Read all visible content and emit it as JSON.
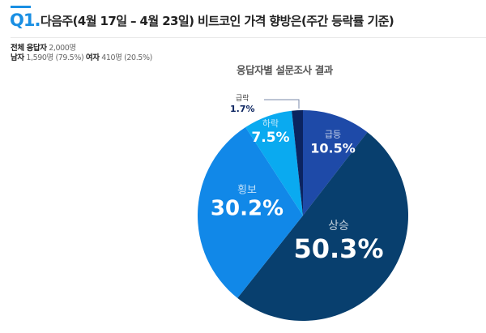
{
  "header": {
    "question_number": "Q1.",
    "title": "다음주(4월 17일 – 4월 23일)  비트코인 가격 향방은(주간 등락률 기준)"
  },
  "stats": {
    "total_label": "전체 응답자",
    "total_value": "2,000명",
    "male_label": "남자",
    "male_value": "1,590명 (79.5%)",
    "female_label": "여자",
    "female_value": "410명 (20.5%)"
  },
  "colors": {
    "accent": "#1a8fe3",
    "상승": "#083f6e",
    "횡보": "#1188e8",
    "하락": "#0aaaf0",
    "급락": "#0b2460",
    "급등": "#1e4aa8"
  },
  "chart_data": {
    "type": "pie",
    "title": "응답자별 설문조사 결과",
    "categories": [
      "급등",
      "상승",
      "횡보",
      "하락",
      "급락"
    ],
    "values": [
      10.5,
      50.3,
      30.2,
      7.5,
      1.7
    ],
    "value_labels": [
      "10.5%",
      "50.3%",
      "30.2%",
      "7.5%",
      "1.7%"
    ],
    "start_angle": "12 o'clock, clockwise",
    "legend": "none (inline labels)"
  }
}
